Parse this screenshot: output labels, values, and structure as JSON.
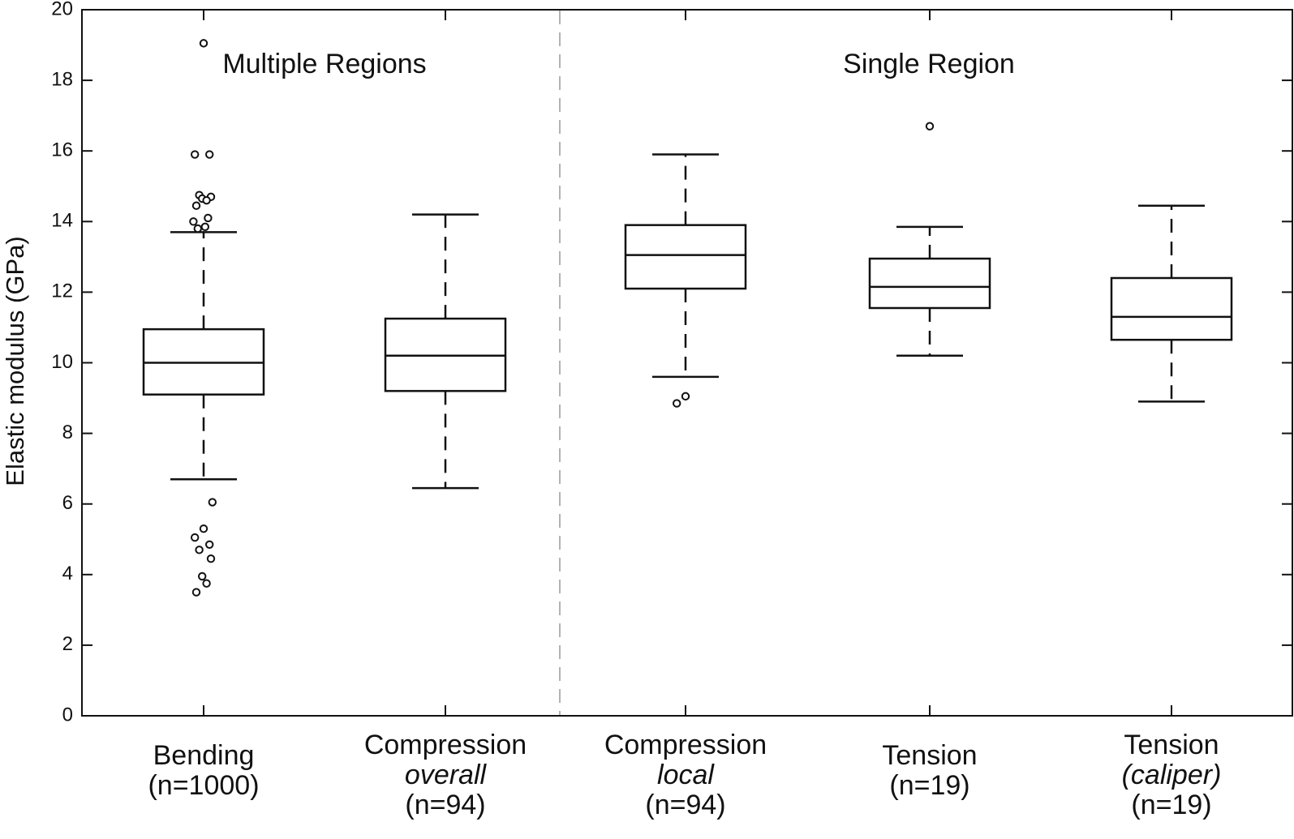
{
  "chart_data": {
    "type": "box",
    "title": "",
    "xlabel": "",
    "ylabel": "Elastic modulus (GPa)",
    "ylim": [
      0,
      20
    ],
    "yticks": [
      0,
      2,
      4,
      6,
      8,
      10,
      12,
      14,
      16,
      18,
      20
    ],
    "grid": false,
    "legend": "none",
    "colors": {
      "axis": "#111111",
      "box": "#111111",
      "divider": "#b3b3b3",
      "background": "#ffffff"
    },
    "regions": [
      {
        "label": "Multiple Regions",
        "categories": [
          0,
          1
        ]
      },
      {
        "label": "Single Region",
        "categories": [
          2,
          3,
          4
        ]
      }
    ],
    "categories": [
      {
        "line1": "Bending",
        "line2_italic": "",
        "line3": "(n=1000)",
        "whisker_low": 6.7,
        "q1": 9.1,
        "median": 10.0,
        "q3": 10.95,
        "whisker_high": 13.7,
        "outliers": [
          19.05,
          15.9,
          15.9,
          14.75,
          14.7,
          14.65,
          14.6,
          14.45,
          14.1,
          14.0,
          13.85,
          13.8,
          6.05,
          5.3,
          5.05,
          4.85,
          4.7,
          4.45,
          3.95,
          3.75,
          3.5
        ]
      },
      {
        "line1": "Compression",
        "line2_italic": "overall",
        "line3": "(n=94)",
        "whisker_low": 6.45,
        "q1": 9.2,
        "median": 10.2,
        "q3": 11.25,
        "whisker_high": 14.2,
        "outliers": []
      },
      {
        "line1": "Compression",
        "line2_italic": "local",
        "line3": "(n=94)",
        "whisker_low": 9.6,
        "q1": 12.1,
        "median": 13.05,
        "q3": 13.9,
        "whisker_high": 15.9,
        "outliers": [
          9.05,
          8.85
        ]
      },
      {
        "line1": "Tension",
        "line2_italic": "",
        "line3": "(n=19)",
        "whisker_low": 10.2,
        "q1": 11.55,
        "median": 12.15,
        "q3": 12.95,
        "whisker_high": 13.85,
        "outliers": [
          16.7
        ]
      },
      {
        "line1": "Tension",
        "line2_italic": "(caliper)",
        "line3": "(n=19)",
        "whisker_low": 8.9,
        "q1": 10.65,
        "median": 11.3,
        "q3": 12.4,
        "whisker_high": 14.45,
        "outliers": []
      }
    ]
  }
}
